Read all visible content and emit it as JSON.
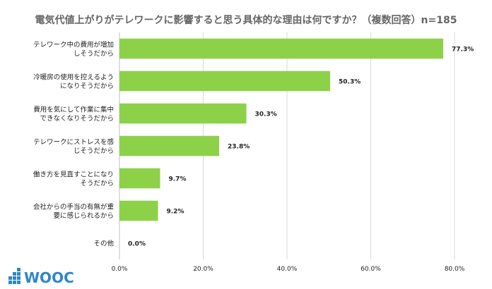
{
  "chart_data": {
    "type": "bar",
    "orientation": "horizontal",
    "title": "電気代値上がりがテレワークに影響すると思う具体的な理由は何ですか？（複数回答）n=185",
    "categories": [
      [
        "テレワーク中の費用が増加",
        "しそうだから"
      ],
      [
        "冷暖房の使用を控えるよう",
        "になりそうだから"
      ],
      [
        "費用を気にして作業に集中",
        "できなくなりそうだから"
      ],
      [
        "テレワークにストレスを感",
        "じそうだから"
      ],
      [
        "働き方を見直すことになり",
        "そうだから"
      ],
      [
        "会社からの手当の有無が重",
        "要に感じられるから"
      ],
      [
        "その他"
      ]
    ],
    "values": [
      77.3,
      50.3,
      30.3,
      23.8,
      9.7,
      9.2,
      0.0
    ],
    "value_labels": [
      "77.3%",
      "50.3%",
      "30.3%",
      "23.8%",
      "9.7%",
      "9.2%",
      "0.0%"
    ],
    "xlim": [
      0,
      80
    ],
    "xticks": [
      0,
      20,
      40,
      60,
      80
    ],
    "xtick_labels": [
      "0.0%",
      "20.0%",
      "40.0%",
      "60.0%",
      "80.0%"
    ],
    "grid": true,
    "bar_color": "#8dd149",
    "grid_color": "#d9d9d9"
  },
  "logo": {
    "text": "WOOC",
    "color": "#2e86c9",
    "icon": "bar-blocks-icon"
  }
}
